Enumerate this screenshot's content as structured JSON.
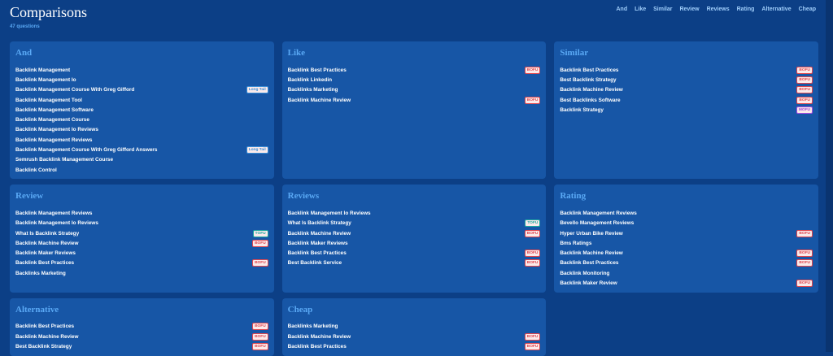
{
  "header": {
    "title": "Comparisons",
    "subtitle": "47 questions",
    "nav": [
      "And",
      "Like",
      "Similar",
      "Review",
      "Reviews",
      "Rating",
      "Alternative",
      "Cheap"
    ]
  },
  "groups": [
    {
      "title": "And",
      "items": [
        {
          "text": "Backlink Management"
        },
        {
          "text": "Backlink Management Io"
        },
        {
          "text": "Backlink Management Course With Greg Gifford",
          "tag": {
            "label": "Long Tail",
            "color": "#3b8fd9"
          }
        },
        {
          "text": "Backlink Management Tool"
        },
        {
          "text": "Backlink Management Software"
        },
        {
          "text": "Backlink Management Course"
        },
        {
          "text": "Backlink Management Io Reviews"
        },
        {
          "text": "Backlink Management Reviews"
        },
        {
          "text": "Backlink Management Course With Greg Gifford Answers",
          "tag": {
            "label": "Long Tail",
            "color": "#3b8fd9"
          }
        },
        {
          "text": "Semrush Backlink Management Course"
        },
        {
          "text": "Backlink Control"
        }
      ]
    },
    {
      "title": "Like",
      "items": [
        {
          "text": "Backlink Best Practices",
          "tag": {
            "label": "BOFU",
            "color": "#e0464e"
          }
        },
        {
          "text": "Backlink Linkedin"
        },
        {
          "text": "Backlinks Marketing"
        },
        {
          "text": "Backlink Machine Review",
          "tag": {
            "label": "BOFU",
            "color": "#e0464e"
          }
        }
      ]
    },
    {
      "title": "Similar",
      "items": [
        {
          "text": "Backlink Best Practices",
          "tag": {
            "label": "BOFU",
            "color": "#e0464e"
          }
        },
        {
          "text": "Best Backlink Strategy",
          "tag": {
            "label": "BOFU",
            "color": "#e0464e"
          }
        },
        {
          "text": "Backlink Machine Review",
          "tag": {
            "label": "BOFU",
            "color": "#e0464e"
          }
        },
        {
          "text": "Best Backlinks Software",
          "tag": {
            "label": "BOFU",
            "color": "#e0464e"
          }
        },
        {
          "text": "Backlink Strategy",
          "tag": {
            "label": "MOFU",
            "color": "#a04ce0"
          }
        }
      ]
    },
    {
      "title": "Review",
      "items": [
        {
          "text": "Backlink Management Reviews"
        },
        {
          "text": "Backlink Management Io Reviews"
        },
        {
          "text": "What Is Backlink Strategy",
          "tag": {
            "label": "TOFU",
            "color": "#1ea8a0"
          }
        },
        {
          "text": "Backlink Machine Review",
          "tag": {
            "label": "BOFU",
            "color": "#e0464e"
          }
        },
        {
          "text": "Backlink Maker Reviews"
        },
        {
          "text": "Backlink Best Practices",
          "tag": {
            "label": "BOFU",
            "color": "#e0464e"
          }
        },
        {
          "text": "Backlinks Marketing"
        }
      ]
    },
    {
      "title": "Reviews",
      "items": [
        {
          "text": "Backlink Management Io Reviews"
        },
        {
          "text": "What Is Backlink Strategy",
          "tag": {
            "label": "TOFU",
            "color": "#1ea8a0"
          }
        },
        {
          "text": "Backlink Machine Review",
          "tag": {
            "label": "BOFU",
            "color": "#e0464e"
          }
        },
        {
          "text": "Backlink Maker Reviews"
        },
        {
          "text": "Backlink Best Practices",
          "tag": {
            "label": "BOFU",
            "color": "#e0464e"
          }
        },
        {
          "text": "Best Backlink Service",
          "tag": {
            "label": "BOFU",
            "color": "#e0464e"
          }
        }
      ]
    },
    {
      "title": "Rating",
      "items": [
        {
          "text": "Backlink Management Reviews"
        },
        {
          "text": "Bevello Management Reviews"
        },
        {
          "text": "Hyper Urban Bike Review",
          "tag": {
            "label": "BOFU",
            "color": "#e0464e"
          }
        },
        {
          "text": "Bms Ratings"
        },
        {
          "text": "Backlink Machine Review",
          "tag": {
            "label": "BOFU",
            "color": "#e0464e"
          }
        },
        {
          "text": "Backlink Best Practices",
          "tag": {
            "label": "BOFU",
            "color": "#e0464e"
          }
        },
        {
          "text": "Backlink Monitoring"
        },
        {
          "text": "Backlink Maker Review",
          "tag": {
            "label": "BOFU",
            "color": "#e0464e"
          }
        }
      ]
    },
    {
      "title": "Alternative",
      "items": [
        {
          "text": "Backlink Best Practices",
          "tag": {
            "label": "BOFU",
            "color": "#e0464e"
          }
        },
        {
          "text": "Backlink Machine Review",
          "tag": {
            "label": "BOFU",
            "color": "#e0464e"
          }
        },
        {
          "text": "Best Backlink Strategy",
          "tag": {
            "label": "BOFU",
            "color": "#e0464e"
          }
        }
      ]
    },
    {
      "title": "Cheap",
      "items": [
        {
          "text": "Backlinks Marketing"
        },
        {
          "text": "Backlink Machine Review",
          "tag": {
            "label": "BOFU",
            "color": "#e0464e"
          }
        },
        {
          "text": "Backlink Best Practices",
          "tag": {
            "label": "BOFU",
            "color": "#e0464e"
          }
        }
      ]
    }
  ]
}
